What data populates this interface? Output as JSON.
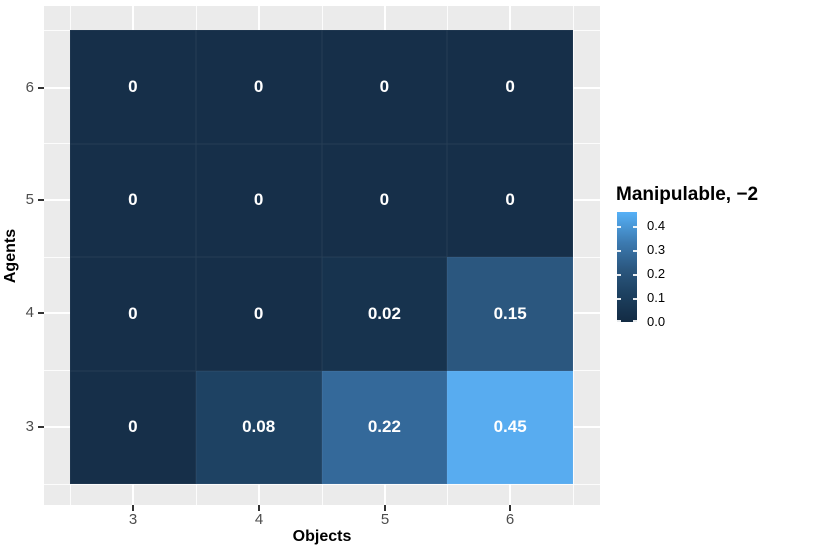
{
  "chart_data": {
    "type": "heatmap",
    "title": "",
    "xlabel": "Objects",
    "ylabel": "Agents",
    "x_ticks": [
      "3",
      "4",
      "5",
      "6"
    ],
    "y_ticks": [
      "6",
      "5",
      "4",
      "3"
    ],
    "x": [
      3,
      4,
      5,
      6
    ],
    "y_rows_top_to_bottom": [
      6,
      5,
      4,
      3
    ],
    "rows": [
      {
        "agent": 6,
        "cells": [
          {
            "label": "0",
            "value": 0,
            "color": "#162f49"
          },
          {
            "label": "0",
            "value": 0,
            "color": "#162f49"
          },
          {
            "label": "0",
            "value": 0,
            "color": "#162f49"
          },
          {
            "label": "0",
            "value": 0,
            "color": "#162f49"
          }
        ]
      },
      {
        "agent": 5,
        "cells": [
          {
            "label": "0",
            "value": 0,
            "color": "#162f49"
          },
          {
            "label": "0",
            "value": 0,
            "color": "#162f49"
          },
          {
            "label": "0",
            "value": 0,
            "color": "#162f49"
          },
          {
            "label": "0",
            "value": 0,
            "color": "#162f49"
          }
        ]
      },
      {
        "agent": 4,
        "cells": [
          {
            "label": "0",
            "value": 0,
            "color": "#162f49"
          },
          {
            "label": "0",
            "value": 0,
            "color": "#162f49"
          },
          {
            "label": "0.02",
            "value": 0.02,
            "color": "#17334e"
          },
          {
            "label": "0.15",
            "value": 0.15,
            "color": "#2b577f"
          }
        ]
      },
      {
        "agent": 3,
        "cells": [
          {
            "label": "0",
            "value": 0,
            "color": "#162f49"
          },
          {
            "label": "0.08",
            "value": 0.08,
            "color": "#1e4263"
          },
          {
            "label": "0.22",
            "value": 0.22,
            "color": "#34699a"
          },
          {
            "label": "0.45",
            "value": 0.45,
            "color": "#58acf0"
          }
        ]
      }
    ],
    "legend": {
      "title": "Manipulable, −2",
      "position": "right",
      "ticks": [
        {
          "label": "0.4",
          "value": 0.4
        },
        {
          "label": "0.3",
          "value": 0.3
        },
        {
          "label": "0.2",
          "value": 0.2
        },
        {
          "label": "0.1",
          "value": 0.1
        },
        {
          "label": "0.0",
          "value": 0.0
        }
      ],
      "range": [
        0,
        0.46
      ],
      "gradient_low": "#132b43",
      "gradient_high": "#56b1f7"
    },
    "panel_background": "#ebebeb",
    "grid": "white major and minor lines"
  }
}
